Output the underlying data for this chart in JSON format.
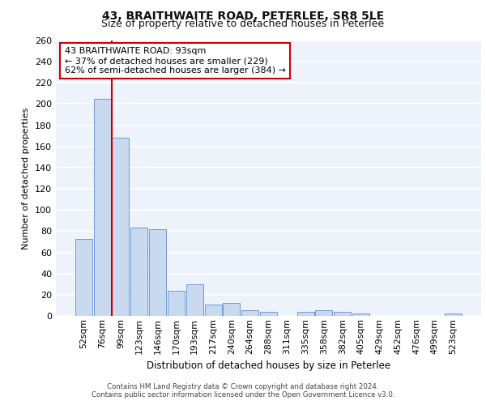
{
  "title": "43, BRAITHWAITE ROAD, PETERLEE, SR8 5LE",
  "subtitle": "Size of property relative to detached houses in Peterlee",
  "xlabel": "Distribution of detached houses by size in Peterlee",
  "ylabel": "Number of detached properties",
  "categories": [
    "52sqm",
    "76sqm",
    "99sqm",
    "123sqm",
    "146sqm",
    "170sqm",
    "193sqm",
    "217sqm",
    "240sqm",
    "264sqm",
    "288sqm",
    "311sqm",
    "335sqm",
    "358sqm",
    "382sqm",
    "405sqm",
    "429sqm",
    "452sqm",
    "476sqm",
    "499sqm",
    "523sqm"
  ],
  "values": [
    73,
    205,
    168,
    83,
    82,
    24,
    30,
    11,
    12,
    5,
    4,
    0,
    4,
    5,
    4,
    2,
    0,
    0,
    0,
    0,
    2
  ],
  "bar_color": "#c8d9f0",
  "bar_edge_color": "#5b8fd4",
  "background_color": "#edf2fb",
  "grid_color": "#ffffff",
  "red_line_x": 1.5,
  "red_line_color": "#cc0000",
  "annotation_text": "43 BRAITHWAITE ROAD: 93sqm\n← 37% of detached houses are smaller (229)\n62% of semi-detached houses are larger (384) →",
  "annotation_box_color": "#ffffff",
  "annotation_box_edge": "#cc0000",
  "ylim": [
    0,
    260
  ],
  "yticks": [
    0,
    20,
    40,
    60,
    80,
    100,
    120,
    140,
    160,
    180,
    200,
    220,
    240,
    260
  ],
  "footer_line1": "Contains HM Land Registry data © Crown copyright and database right 2024.",
  "footer_line2": "Contains public sector information licensed under the Open Government Licence v3.0."
}
